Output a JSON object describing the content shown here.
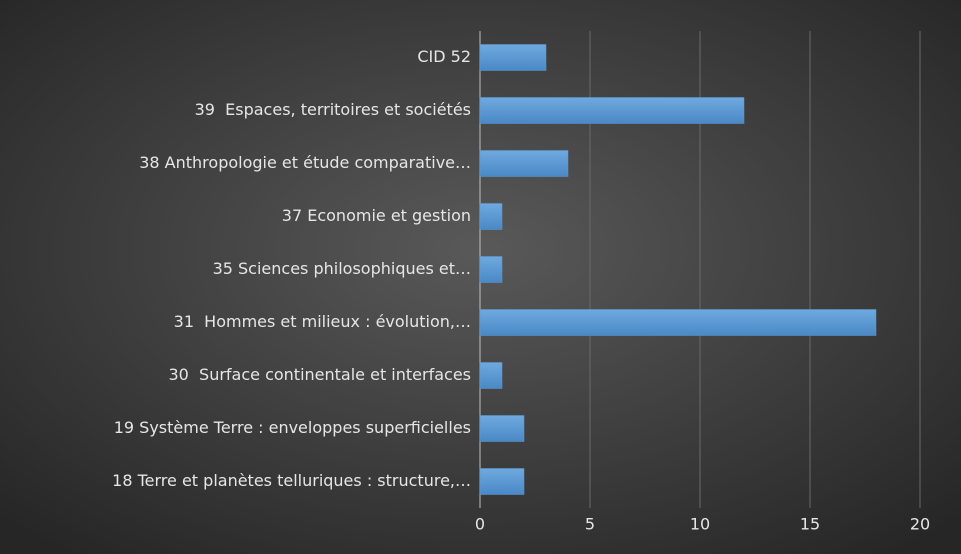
{
  "chart_data": {
    "type": "bar",
    "orientation": "horizontal",
    "categories": [
      "CID 52",
      "39  Espaces, territoires et sociétés",
      "38 Anthropologie et étude comparative…",
      "37 Economie et gestion",
      "35 Sciences philosophiques et…",
      "31  Hommes et milieux : évolution,…",
      "30  Surface continentale et interfaces",
      "19 Système Terre : enveloppes superficielles",
      "18 Terre et planètes telluriques : structure,…"
    ],
    "values": [
      3,
      12,
      4,
      1,
      1,
      18,
      1,
      2,
      2
    ],
    "color": "#5b9bd5",
    "xlim": [
      0,
      20
    ],
    "xticks": [
      0,
      5,
      10,
      15,
      20
    ],
    "grid": true
  }
}
